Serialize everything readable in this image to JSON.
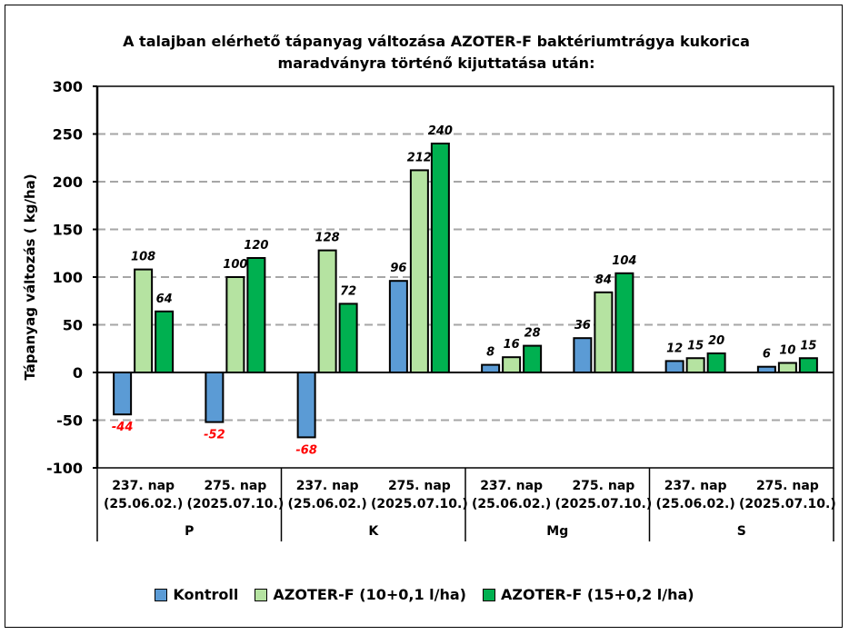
{
  "chart_data": {
    "type": "bar",
    "title": "A talajban elérhető tápanyag változása AZOTER-F baktériumtrágya kukorica maradványra történő kijuttatása után:",
    "title_lines": [
      "A talajban elérhető tápanyag változása AZOTER-F baktériumtrágya kukorica",
      "maradványra történő kijuttatása után:"
    ],
    "ylabel": "Tápanyag változás ( kg/ha)",
    "xlabel": "",
    "ylim": [
      -100,
      300
    ],
    "yticks": [
      300,
      250,
      200,
      150,
      100,
      50,
      0,
      -50,
      -100
    ],
    "grid": "horizontal dashed",
    "legend_position": "bottom",
    "groups": [
      "P",
      "K",
      "Mg",
      "S"
    ],
    "categories": [
      {
        "group": "P",
        "line1": "237. nap",
        "line2": "(25.06.02.)"
      },
      {
        "group": "P",
        "line1": "275. nap",
        "line2": "(2025.07.10.)"
      },
      {
        "group": "K",
        "line1": "237. nap",
        "line2": "(25.06.02.)"
      },
      {
        "group": "K",
        "line1": "275. nap",
        "line2": "(2025.07.10.)"
      },
      {
        "group": "Mg",
        "line1": "237. nap",
        "line2": "(25.06.02.)"
      },
      {
        "group": "Mg",
        "line1": "275. nap",
        "line2": "(2025.07.10.)"
      },
      {
        "group": "S",
        "line1": "237. nap",
        "line2": "(25.06.02.)"
      },
      {
        "group": "S",
        "line1": "275. nap",
        "line2": "(2025.07.10.)"
      }
    ],
    "series": [
      {
        "name": "Kontroll",
        "color": "#5b9bd5",
        "values": [
          -44,
          -52,
          -68,
          96,
          8,
          36,
          12,
          6
        ]
      },
      {
        "name": "AZOTER-F (10+0,1 l/ha)",
        "color": "#b5e3a1",
        "values": [
          108,
          100,
          128,
          212,
          16,
          84,
          15,
          10
        ]
      },
      {
        "name": "AZOTER-F (15+0,2 l/ha)",
        "color": "#00b050",
        "values": [
          64,
          120,
          72,
          240,
          28,
          104,
          20,
          15
        ]
      }
    ],
    "negative_label_color": "#ff0000"
  }
}
